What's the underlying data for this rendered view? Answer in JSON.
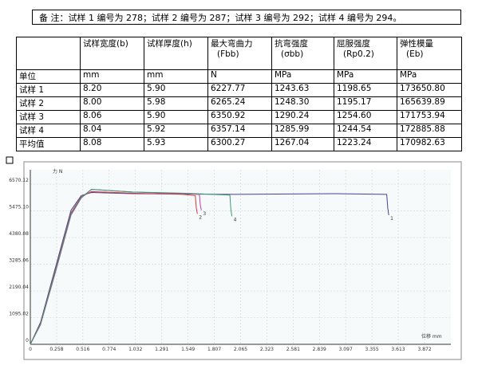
{
  "note": "备 注：试样 1 编号为 278；试样 2 编号为 287；试样 3 编号为 292；试样 4 编号为 294。",
  "table": {
    "header": [
      [],
      [
        "试样宽度(b)"
      ],
      [
        "试样厚度(h)"
      ],
      [
        "最大弯曲力",
        "(Fbb)"
      ],
      [
        "抗弯强度",
        "(σbb)"
      ],
      [
        "屈服强度",
        "(Rp0.2)"
      ],
      [
        "弹性模量",
        "(Eb)"
      ]
    ],
    "rows": [
      [
        "单位",
        "mm",
        "mm",
        "N",
        "MPa",
        "MPa",
        "MPa"
      ],
      [
        "试样 1",
        "8.20",
        "5.90",
        "6227.77",
        "1243.63",
        "1198.65",
        "173650.80"
      ],
      [
        "试样 2",
        "8.00",
        "5.98",
        "6265.24",
        "1248.30",
        "1195.17",
        "165639.89"
      ],
      [
        "试样 3",
        "8.06",
        "5.90",
        "6350.92",
        "1290.24",
        "1254.60",
        "171753.94"
      ],
      [
        "试样 4",
        "8.04",
        "5.92",
        "6357.14",
        "1285.99",
        "1244.54",
        "172885.88"
      ],
      [
        "平均值",
        "8.08",
        "5.93",
        "6300.27",
        "1267.04",
        "1223.24",
        "170982.63"
      ]
    ]
  },
  "chart_data": {
    "type": "line",
    "y_label": "力 N",
    "x_label": "位移 mm",
    "xlim": [
      0,
      4.13
    ],
    "ylim": [
      0,
      7160
    ],
    "xticks": [
      0,
      0.258,
      0.516,
      0.774,
      1.032,
      1.291,
      1.549,
      1.807,
      2.065,
      2.323,
      2.581,
      2.839,
      3.097,
      3.355,
      3.613,
      3.872
    ],
    "yticks": [
      0,
      1095.02,
      2190.04,
      3285.06,
      4380.08,
      {
        "value": 5475.1,
        "label": "5475.10"
      },
      6570.12
    ],
    "grid": true,
    "series": [
      {
        "name": "1",
        "color": "#4a3f9a",
        "x": [
          0,
          0.1,
          0.25,
          0.4,
          0.5,
          0.6,
          1.0,
          2.0,
          3.0,
          3.5,
          3.51,
          3.52
        ],
        "values": [
          0,
          900,
          3200,
          5500,
          6100,
          6227.77,
          6180,
          6150,
          6180,
          6150,
          5600,
          5300
        ]
      },
      {
        "name": "2",
        "color": "#d03c3c",
        "x": [
          0,
          0.1,
          0.25,
          0.4,
          0.5,
          0.6,
          1.0,
          1.5,
          1.62,
          1.63,
          1.64
        ],
        "values": [
          0,
          850,
          3100,
          5400,
          6050,
          6265.24,
          6200,
          6150,
          6100,
          5600,
          5350
        ]
      },
      {
        "name": "3",
        "color": "#c040b0",
        "x": [
          0,
          0.1,
          0.25,
          0.4,
          0.5,
          0.6,
          1.0,
          1.5,
          1.66,
          1.67,
          1.68
        ],
        "values": [
          0,
          800,
          3000,
          5300,
          6000,
          6350.92,
          6250,
          6180,
          6150,
          5700,
          5500
        ]
      },
      {
        "name": "4",
        "color": "#3a9a70",
        "x": [
          0,
          0.1,
          0.25,
          0.4,
          0.5,
          0.6,
          1.0,
          1.5,
          1.96,
          1.97,
          1.98
        ],
        "values": [
          0,
          820,
          3050,
          5350,
          6020,
          6357.14,
          6250,
          6200,
          6120,
          5500,
          5250
        ]
      }
    ]
  }
}
